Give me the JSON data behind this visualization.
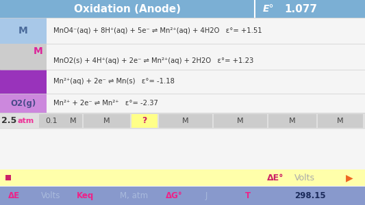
{
  "title": "Oxidation (Anode)",
  "e_label": "E°",
  "e_value": "1.077",
  "header_bg": "#7BAFD4",
  "header_text_color": "#ffffff",
  "row0_label": "M",
  "row0_label_bg": "#A8C8E8",
  "row0_label_text_color": "#4a6a9a",
  "row0_eq": "MnO4⁻(aq) + 8H⁺(aq) + 5e⁻ ⇌ Mn²⁺(aq) + 4H2O   ε°= +1.51",
  "row1_label": "M",
  "row1_label_bg": "#cccccc",
  "row1_label_text_color": "#dd2299",
  "row1_eq": "MnO2(s) + 4H⁺(aq) + 2e⁻ ⇌ Mn²⁺(aq) + 2H2O   ε°= +1.23",
  "row2_label": "",
  "row2_label_bg": "#9933bb",
  "row2_label_text_color": "#ffffff",
  "row2_eq": "Mn²⁺(aq) + 2e⁻ ⇌ Mn(s)   ε°= -1.18",
  "row3_label": "O2(g)",
  "row3_label_bg": "#cc88dd",
  "row3_label_text_color": "#4a4a8a",
  "row3_eq": "Mn²⁺ + 2e⁻ ⇌ Mn²⁺   ε°= -2.37",
  "bottom_bar_bg": "#e0e0e0",
  "bottom_bar_question_bg": "#ffff88",
  "bottom_bar_atm_color": "#ee3399",
  "yellow_bar_bg": "#ffffaa",
  "yellow_bar_square_color": "#cc2266",
  "yellow_bar_delta_e": "ΔE°",
  "yellow_bar_volts": "Volts",
  "yellow_bar_arrow_color": "#ee6622",
  "footer_bg": "#8899cc",
  "footer_items": [
    "ΔE",
    "Volts",
    "Keq",
    "M, atm",
    "ΔG°",
    "J",
    "T",
    "298.15"
  ],
  "footer_highlight_color": "#ee2288",
  "footer_normal_color": "#aabbdd",
  "footer_bold_items": [
    "ΔE",
    "Keq",
    "ΔG°",
    "T"
  ],
  "bg_color": "#f5f5f5",
  "fig_width": 5.33,
  "fig_height": 3.0
}
